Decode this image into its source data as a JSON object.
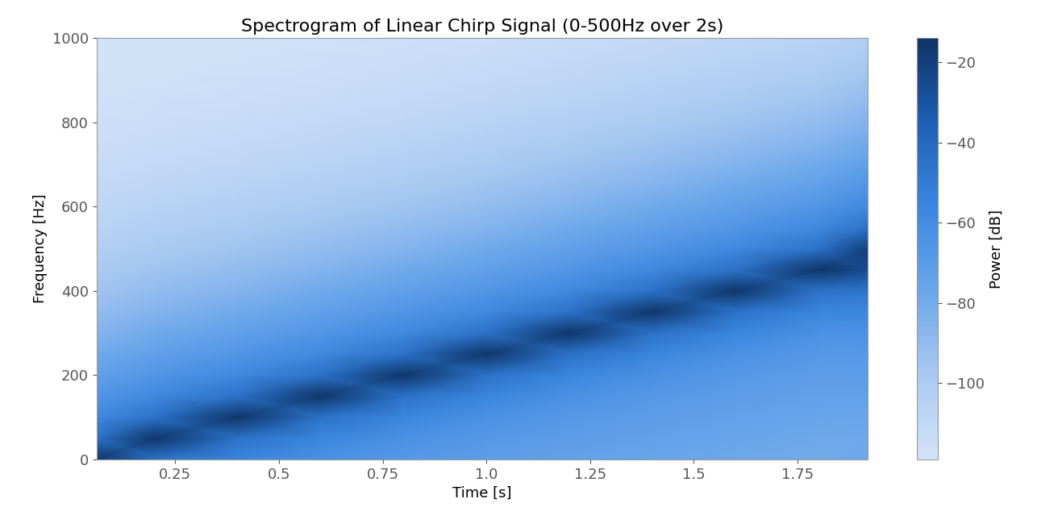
{
  "chart_data": {
    "type": "heatmap",
    "title": "Spectrogram of Linear Chirp Signal (0-500Hz over 2s)",
    "x_label": "Time [s]",
    "y_label": "Frequency [Hz]",
    "x": [
      0.06,
      0.2,
      0.4,
      0.6,
      0.8,
      1.0,
      1.2,
      1.4,
      1.6,
      1.8,
      1.92
    ],
    "y": [
      0,
      50,
      100,
      150,
      200,
      250,
      300,
      350,
      400,
      450,
      500,
      550,
      600,
      650,
      700,
      750,
      800,
      850,
      900,
      950,
      1000
    ],
    "cells": [
      [
        -15,
        -45,
        -56,
        -63,
        -68,
        -71,
        -74,
        -76,
        -78,
        -80,
        -78
      ],
      [
        -45,
        -15,
        -45,
        -56,
        -63,
        -68,
        -71,
        -74,
        -76,
        -78,
        -78
      ],
      [
        -58,
        -45,
        -15,
        -45,
        -56,
        -63,
        -68,
        -71,
        -74,
        -76,
        -76
      ],
      [
        -66,
        -58,
        -45,
        -15,
        -45,
        -56,
        -63,
        -68,
        -71,
        -74,
        -74
      ],
      [
        -73,
        -66,
        -58,
        -45,
        -15,
        -45,
        -56,
        -63,
        -68,
        -71,
        -71
      ],
      [
        -79,
        -73,
        -66,
        -58,
        -45,
        -15,
        -45,
        -56,
        -63,
        -68,
        -68
      ],
      [
        -85,
        -79,
        -73,
        -66,
        -58,
        -45,
        -15,
        -45,
        -56,
        -63,
        -63
      ],
      [
        -90,
        -85,
        -79,
        -73,
        -66,
        -58,
        -45,
        -15,
        -45,
        -56,
        -56
      ],
      [
        -95,
        -90,
        -85,
        -79,
        -73,
        -66,
        -58,
        -45,
        -15,
        -45,
        -47
      ],
      [
        -99,
        -95,
        -90,
        -85,
        -79,
        -73,
        -66,
        -58,
        -45,
        -15,
        -25
      ],
      [
        -103,
        -99,
        -95,
        -90,
        -85,
        -79,
        -73,
        -66,
        -58,
        -45,
        -20
      ],
      [
        -106,
        -103,
        -99,
        -95,
        -90,
        -85,
        -79,
        -73,
        -66,
        -58,
        -45
      ],
      [
        -109,
        -106,
        -103,
        -99,
        -95,
        -90,
        -85,
        -79,
        -73,
        -66,
        -58
      ],
      [
        -111,
        -109,
        -106,
        -103,
        -99,
        -95,
        -90,
        -85,
        -79,
        -73,
        -66
      ],
      [
        -113,
        -111,
        -109,
        -106,
        -103,
        -99,
        -95,
        -90,
        -85,
        -79,
        -73
      ],
      [
        -115,
        -113,
        -111,
        -109,
        -106,
        -103,
        -99,
        -95,
        -90,
        -85,
        -79
      ],
      [
        -116,
        -115,
        -113,
        -111,
        -109,
        -106,
        -103,
        -99,
        -95,
        -90,
        -85
      ],
      [
        -117,
        -116,
        -115,
        -113,
        -111,
        -109,
        -106,
        -103,
        -99,
        -95,
        -90
      ],
      [
        -118,
        -117,
        -116,
        -115,
        -113,
        -111,
        -109,
        -106,
        -103,
        -99,
        -95
      ],
      [
        -118,
        -118,
        -117,
        -116,
        -115,
        -113,
        -111,
        -109,
        -106,
        -103,
        -99
      ],
      [
        -118,
        -118,
        -118,
        -117,
        -116,
        -115,
        -113,
        -111,
        -109,
        -106,
        -103
      ]
    ],
    "xlim": [
      0.06,
      1.92
    ],
    "ylim": [
      0,
      1000
    ],
    "xticks": [
      0.25,
      0.5,
      0.75,
      1.0,
      1.25,
      1.5,
      1.75
    ],
    "yticks": [
      0,
      200,
      400,
      600,
      800,
      1000
    ],
    "colorbar": {
      "label": "Power [dB]",
      "range": [
        -119,
        -14
      ],
      "ticks": [
        {
          "value": -20,
          "label": "−20"
        },
        {
          "value": -40,
          "label": "−40"
        },
        {
          "value": -60,
          "label": "−60"
        },
        {
          "value": -80,
          "label": "−80"
        },
        {
          "value": -100,
          "label": "−100"
        }
      ]
    },
    "grid": false
  }
}
